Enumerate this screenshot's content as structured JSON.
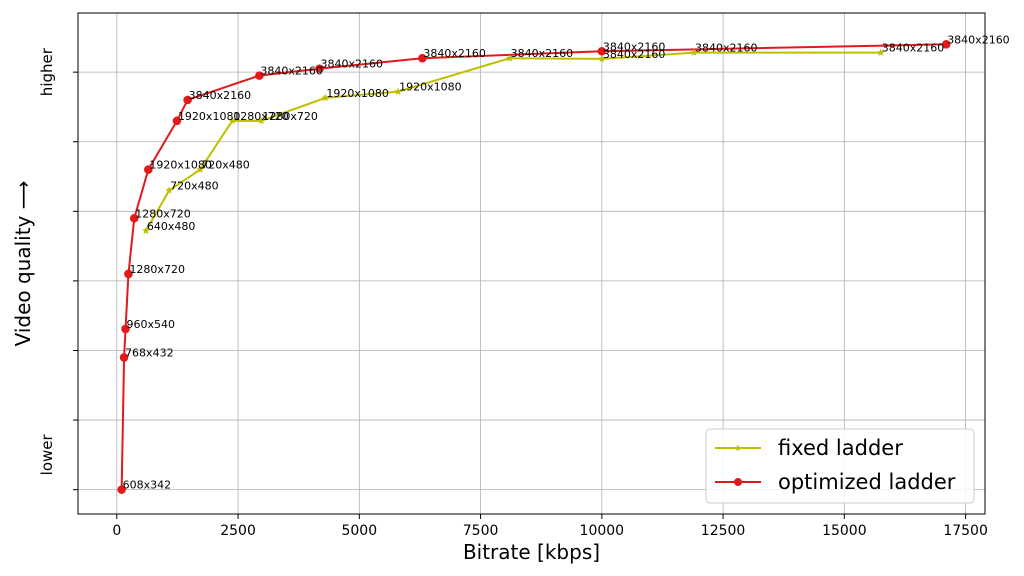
{
  "chart_data": {
    "type": "line",
    "xlabel": "Bitrate [kbps]",
    "ylabel": "Video quality ⟶",
    "y_low_label": "lower",
    "y_high_label": "higher",
    "xlim": [
      -800,
      17900
    ],
    "ylim": [
      -0.35,
      6.85
    ],
    "x_ticks": [
      0,
      2500,
      5000,
      7500,
      10000,
      12500,
      15000,
      17500
    ],
    "x_tick_labels": [
      "0",
      "2500",
      "5000",
      "7500",
      "10000",
      "12500",
      "15000",
      "17500"
    ],
    "y_ticks": [
      0,
      1,
      2,
      3,
      4,
      5,
      6
    ],
    "grid": true,
    "legend_position": "lower-right",
    "series": [
      {
        "name": "fixed ladder",
        "color": "#bfbf00",
        "marker": "star",
        "points": [
          {
            "x": 600,
            "y": 3.72,
            "label": "640x480"
          },
          {
            "x": 1080,
            "y": 4.3,
            "label": "720x480"
          },
          {
            "x": 1720,
            "y": 4.6,
            "label": "720x480"
          },
          {
            "x": 2380,
            "y": 5.3,
            "label": "1280x720"
          },
          {
            "x": 2980,
            "y": 5.3,
            "label": "1280x720"
          },
          {
            "x": 4300,
            "y": 5.63,
            "label": "1920x1080"
          },
          {
            "x": 5800,
            "y": 5.72,
            "label": "1920x1080"
          },
          {
            "x": 8100,
            "y": 6.2,
            "label": "3840x2160"
          },
          {
            "x": 10000,
            "y": 6.19,
            "label": "3840x2160"
          },
          {
            "x": 11900,
            "y": 6.28,
            "label": "3840x2160"
          },
          {
            "x": 15750,
            "y": 6.28,
            "label": "3840x2160"
          }
        ]
      },
      {
        "name": "optimized ladder",
        "color": "#e31a1c",
        "marker": "circle",
        "points": [
          {
            "x": 100,
            "y": 0.0,
            "label": "608x342"
          },
          {
            "x": 150,
            "y": 1.9,
            "label": "768x432"
          },
          {
            "x": 180,
            "y": 2.31,
            "label": "960x540"
          },
          {
            "x": 240,
            "y": 3.1,
            "label": "1280x720"
          },
          {
            "x": 360,
            "y": 3.9,
            "label": "1280x720"
          },
          {
            "x": 650,
            "y": 4.6,
            "label": "1920x1080"
          },
          {
            "x": 1240,
            "y": 5.3,
            "label": "1920x1080"
          },
          {
            "x": 1460,
            "y": 5.6,
            "label": "3840x2160"
          },
          {
            "x": 2940,
            "y": 5.95,
            "label": "3840x2160"
          },
          {
            "x": 4180,
            "y": 6.05,
            "label": "3840x2160"
          },
          {
            "x": 6300,
            "y": 6.2,
            "label": "3840x2160"
          },
          {
            "x": 10000,
            "y": 6.3,
            "label": "3840x2160"
          },
          {
            "x": 17100,
            "y": 6.4,
            "label": "3840x2160"
          }
        ]
      }
    ]
  }
}
